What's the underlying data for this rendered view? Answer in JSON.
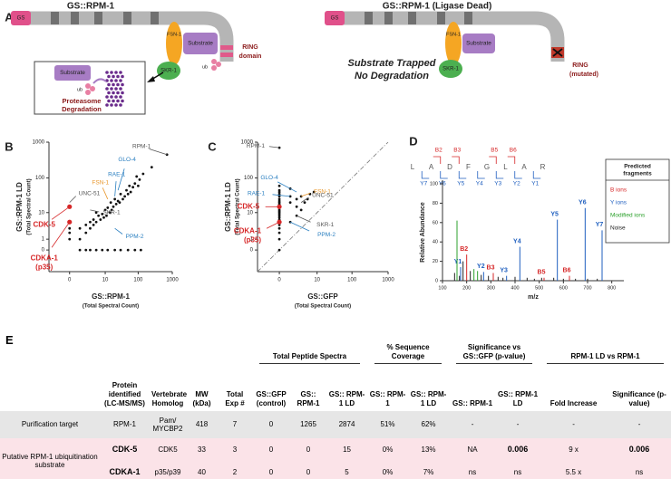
{
  "panel_a": {
    "label": "A",
    "left": {
      "title": "GS::RPM-1",
      "gs": "GS",
      "fsn": "FSN-1",
      "substrate": "Substrate",
      "skr": "SKR-1",
      "ub": "ub",
      "ring": [
        "RING",
        "domain"
      ],
      "box_substrate": "Substrate",
      "box_ub": "ub",
      "box_caption": [
        "Proteasome",
        "Degradation"
      ]
    },
    "right": {
      "title": "GS::RPM-1 (Ligase Dead)",
      "gs": "GS",
      "fsn": "FSN-1",
      "substrate": "Substrate",
      "skr": "SKR-1",
      "caption": [
        "Substrate Trapped",
        "No Degradation"
      ],
      "ring": [
        "RING",
        "(mutated)"
      ]
    }
  },
  "chart_data": [
    {
      "type": "scatter",
      "panel": "B",
      "xlabel": "GS::RPM-1",
      "xlabel_sub": "(Total Spectral Count)",
      "ylabel": "GS::RPM-1 LD",
      "ylabel_sub": "(Total Spectral Count)",
      "scale": "symlog",
      "xlim": [
        -3,
        1000
      ],
      "ylim": [
        -3,
        1000
      ],
      "xticks": [
        0,
        10,
        100,
        1000
      ],
      "yticks": [
        0,
        1,
        10,
        100,
        1000
      ],
      "color": "#111",
      "diagonal": false,
      "x": [
        700,
        250,
        140,
        110,
        100,
        90,
        80,
        70,
        60,
        55,
        50,
        45,
        40,
        35,
        30,
        28,
        25,
        22,
        20,
        18,
        16,
        15,
        14,
        12,
        11,
        10,
        9,
        8,
        7,
        6,
        5,
        5,
        4,
        4,
        3,
        3,
        2,
        2,
        1,
        1,
        1,
        2,
        3,
        5,
        8,
        12,
        20,
        30,
        50,
        80,
        120,
        0,
        0,
        0,
        0,
        0
      ],
      "y": [
        450,
        200,
        130,
        90,
        60,
        110,
        70,
        55,
        40,
        60,
        35,
        45,
        30,
        25,
        35,
        20,
        22,
        18,
        25,
        15,
        12,
        20,
        10,
        14,
        8,
        12,
        7,
        9,
        6,
        8,
        5,
        10,
        4,
        6,
        3,
        5,
        2,
        4,
        1,
        3,
        0,
        0,
        0,
        0,
        0,
        0,
        0,
        0,
        0,
        0,
        0,
        15,
        5,
        2,
        3,
        1
      ],
      "annotations": [
        {
          "text": "RPM-1",
          "x": 700,
          "y": 450,
          "color": "#555"
        },
        {
          "text": "UNC-51",
          "x": 0,
          "y": 20,
          "color": "#555"
        },
        {
          "text": "FSN-1",
          "x": 12,
          "y": 25,
          "color": "#e8962a"
        },
        {
          "text": "RAE-1",
          "x": 20,
          "y": 30,
          "color": "#2a7fc0"
        },
        {
          "text": "GLO-4",
          "x": 25,
          "y": 45,
          "color": "#2a7fc0"
        },
        {
          "text": "SKR-1",
          "x": 3,
          "y": 12,
          "color": "#555"
        },
        {
          "text": "PPM-2",
          "x": 20,
          "y": 3,
          "color": "#2a7fc0"
        },
        {
          "text": "CDK-5",
          "x": 0,
          "y": 15,
          "color": "#d62728"
        },
        {
          "text": "CDKA-1",
          "sub": "(p35)",
          "x": 0,
          "y": 5,
          "color": "#d62728"
        }
      ]
    },
    {
      "type": "scatter",
      "panel": "C",
      "xlabel": "GS::GFP",
      "xlabel_sub": "(Total Spectral Count)",
      "ylabel": "GS::RPM-1 LD",
      "ylabel_sub": "(Total Spectral Count)",
      "scale": "symlog",
      "xlim": [
        -3,
        1000
      ],
      "ylim": [
        -3,
        1000
      ],
      "xticks": [
        0,
        10,
        100,
        1000
      ],
      "yticks": [
        0,
        1,
        10,
        100,
        1000
      ],
      "color": "#111",
      "diagonal": true,
      "x": [
        0,
        0,
        0,
        0,
        0,
        0,
        0,
        0,
        0,
        0,
        0,
        0,
        0,
        0,
        0,
        0,
        0,
        0,
        0,
        0,
        0,
        0,
        0,
        0,
        0,
        1,
        1,
        1,
        2,
        2,
        3,
        3,
        4,
        5,
        6,
        8,
        2,
        1,
        0
      ],
      "y": [
        60,
        45,
        40,
        35,
        30,
        25,
        22,
        20,
        18,
        16,
        15,
        14,
        12,
        11,
        10,
        9,
        8,
        7,
        6,
        5,
        4,
        3,
        2,
        1,
        0,
        50,
        30,
        20,
        25,
        15,
        30,
        12,
        20,
        25,
        35,
        40,
        8,
        5,
        700
      ],
      "annotations": [
        {
          "text": "RPM-1",
          "x": 0,
          "y": 700,
          "color": "#555"
        },
        {
          "text": "GLO-4",
          "x": 2,
          "y": 40,
          "color": "#2a7fc0"
        },
        {
          "text": "RAE-1",
          "x": 1,
          "y": 30,
          "color": "#2a7fc0"
        },
        {
          "text": "FSN-1",
          "x": 3,
          "y": 30,
          "color": "#e8962a"
        },
        {
          "text": "UNC-51",
          "x": 3,
          "y": 20,
          "color": "#555"
        },
        {
          "text": "CDK-5",
          "x": 0,
          "y": 15,
          "color": "#d62728"
        },
        {
          "text": "SKR-1",
          "x": 2,
          "y": 8,
          "color": "#555"
        },
        {
          "text": "PPM-2",
          "x": 1,
          "y": 5,
          "color": "#2a7fc0"
        },
        {
          "text": "CDKA-1",
          "sub": "(p35)",
          "x": 0,
          "y": 5,
          "color": "#d62728"
        }
      ]
    },
    {
      "type": "stem",
      "panel": "D",
      "xlabel": "m/z",
      "ylabel": "Relative Abundance",
      "xlim": [
        100,
        850
      ],
      "ylim": [
        0,
        100
      ],
      "xticks": [
        100,
        200,
        300,
        400,
        500,
        600,
        700,
        800
      ],
      "yticks": [
        0,
        20,
        40,
        60,
        80,
        100
      ],
      "sequence": [
        "L",
        "A",
        "D",
        "F",
        "G",
        "L",
        "A",
        "R"
      ],
      "b_labels": [
        "B2",
        "B3",
        "B5",
        "B6"
      ],
      "y_labels": [
        "Y7",
        "Y6",
        "Y5",
        "Y4",
        "Y3",
        "Y2",
        "Y1"
      ],
      "legend_title": [
        "Predicted",
        "fragments"
      ],
      "series": [
        {
          "name": "B ions",
          "color": "#d62728",
          "x": [
            200,
            310,
            520,
            625
          ],
          "values": [
            27,
            8,
            3,
            5
          ],
          "labels": [
            "B2",
            "B3",
            "B5",
            "B6"
          ]
        },
        {
          "name": "Y ions",
          "color": "#1f5fbf",
          "x": [
            175,
            270,
            365,
            420,
            575,
            690,
            760
          ],
          "values": [
            14,
            9,
            5,
            35,
            63,
            75,
            52
          ],
          "labels": [
            "Y1",
            "Y2",
            "Y3",
            "Y4",
            "Y5",
            "Y6",
            "Y7"
          ]
        },
        {
          "name": "Modified ions",
          "color": "#2ca02c",
          "x": [
            160,
            230,
            245
          ],
          "values": [
            62,
            12,
            10
          ]
        },
        {
          "name": "Noise",
          "color": "#222",
          "x": [
            150,
            170,
            185,
            215,
            260,
            290,
            330,
            350,
            400,
            450,
            480,
            510,
            560,
            600,
            650,
            700,
            740
          ],
          "values": [
            8,
            5,
            20,
            10,
            6,
            5,
            4,
            3,
            4,
            3,
            2,
            3,
            3,
            2,
            2,
            2,
            2
          ]
        }
      ]
    }
  ],
  "panel_e": {
    "label": "E",
    "groups": [
      "Total Peptide Spectra",
      "% Sequence Coverage",
      "Significance vs GS::GFP (p-value)",
      "RPM-1 LD vs RPM-1"
    ],
    "columns": [
      "Protein identified (LC-MS/MS)",
      "Vertebrate Homolog",
      "MW (kDa)",
      "Total Exp #",
      "GS::GFP (control)",
      "GS:: RPM-1",
      "GS:: RPM-1 LD",
      "GS:: RPM-1",
      "GS:: RPM-1 LD",
      "GS:: RPM-1",
      "GS:: RPM-1 LD",
      "Fold Increase",
      "Significance (p-value)"
    ],
    "rows": [
      [
        "Purification target",
        "RPM-1",
        "Pam/ MYCBP2",
        "418",
        "7",
        "0",
        "1265",
        "2874",
        "51%",
        "62%",
        "-",
        "-",
        "-",
        "-"
      ],
      [
        "Putative RPM-1 ubiquitination substrate",
        "CDK-5",
        "CDK5",
        "33",
        "3",
        "0",
        "0",
        "15",
        "0%",
        "13%",
        "NA",
        "0.006",
        "9 x",
        "0.006"
      ],
      [
        "CDKA-1",
        "p35/p39",
        "40",
        "2",
        "0",
        "0",
        "5",
        "0%",
        "7%",
        "ns",
        "ns",
        "5.5 x",
        "ns"
      ]
    ]
  }
}
